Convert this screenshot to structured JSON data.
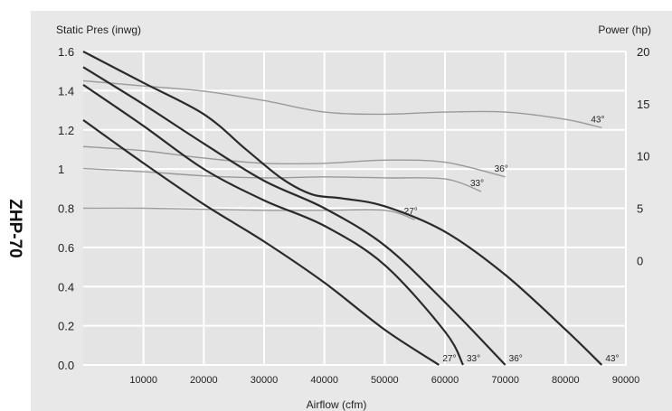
{
  "side_label": "ZHP-70",
  "chart_data": {
    "type": "line",
    "title": "",
    "y_left_label": "Static Pres (inwg)",
    "y_right_label": "Power (hp)",
    "xlabel": "Airflow (cfm)",
    "xlim": [
      0,
      90000
    ],
    "ylim": [
      0,
      1.6
    ],
    "y2lim": [
      -10,
      20
    ],
    "grid": true,
    "x_ticks": [
      10000,
      20000,
      30000,
      40000,
      50000,
      60000,
      70000,
      80000,
      90000
    ],
    "y_ticks": [
      "0.0",
      "0.2",
      "0.4",
      "0.6",
      "0.8",
      "1",
      "1.2",
      "1.4",
      "1.6"
    ],
    "y2_ticks": [
      "0",
      "5",
      "10",
      "15",
      "20"
    ],
    "pressure_series": [
      {
        "name": "27°",
        "color": "#2a2a2a",
        "x": [
          0,
          10000,
          20000,
          30000,
          40000,
          50000,
          59000
        ],
        "y": [
          1.25,
          1.03,
          0.82,
          0.63,
          0.42,
          0.18,
          0.0
        ]
      },
      {
        "name": "33°",
        "color": "#2a2a2a",
        "x": [
          0,
          10000,
          20000,
          30000,
          40000,
          50000,
          60000,
          63000
        ],
        "y": [
          1.43,
          1.22,
          1.0,
          0.84,
          0.71,
          0.51,
          0.17,
          0.0
        ]
      },
      {
        "name": "36°",
        "color": "#2a2a2a",
        "x": [
          0,
          10000,
          20000,
          30000,
          40000,
          50000,
          60000,
          70000
        ],
        "y": [
          1.52,
          1.33,
          1.13,
          0.94,
          0.8,
          0.61,
          0.32,
          0.0
        ]
      },
      {
        "name": "43°",
        "color": "#2a2a2a",
        "x": [
          0,
          10000,
          20000,
          27000,
          33000,
          38000,
          43000,
          50000,
          60000,
          70000,
          80000,
          86000
        ],
        "y": [
          1.6,
          1.44,
          1.28,
          1.1,
          0.95,
          0.87,
          0.85,
          0.81,
          0.68,
          0.46,
          0.18,
          0.0
        ]
      }
    ],
    "power_series": [
      {
        "name": "27°",
        "color": "#9a9a9a",
        "x": [
          0,
          10000,
          20000,
          30000,
          40000,
          50000,
          55000
        ],
        "y": [
          5.0,
          5.0,
          4.9,
          4.8,
          4.8,
          4.8,
          3.9
        ]
      },
      {
        "name": "33°",
        "color": "#9a9a9a",
        "x": [
          0,
          10000,
          20000,
          30000,
          40000,
          50000,
          60000,
          66000
        ],
        "y": [
          8.8,
          8.5,
          8.1,
          7.9,
          8.0,
          7.9,
          7.8,
          6.6
        ]
      },
      {
        "name": "36°",
        "color": "#9a9a9a",
        "x": [
          0,
          10000,
          20000,
          30000,
          40000,
          50000,
          60000,
          70000
        ],
        "y": [
          10.9,
          10.5,
          9.8,
          9.3,
          9.3,
          9.6,
          9.4,
          8.0
        ]
      },
      {
        "name": "43°",
        "color": "#9a9a9a",
        "x": [
          0,
          10000,
          20000,
          30000,
          40000,
          50000,
          60000,
          70000,
          80000,
          86000
        ],
        "y": [
          17.2,
          16.7,
          16.2,
          15.3,
          14.2,
          14.0,
          14.2,
          14.2,
          13.5,
          12.7
        ]
      }
    ]
  }
}
